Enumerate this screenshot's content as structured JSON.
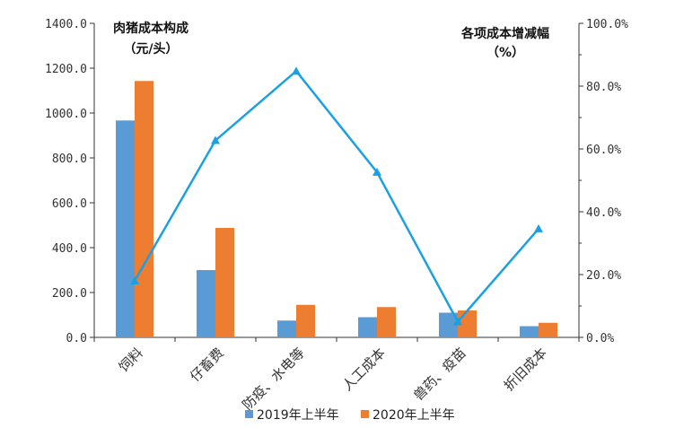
{
  "chart_data": {
    "type": "bar+line",
    "categories": [
      "饲料",
      "仔畜费",
      "防疫、水电等",
      "人工成本",
      "兽药、疫苗",
      "折旧成本"
    ],
    "series": [
      {
        "name": "2019年上半年",
        "type": "bar",
        "axis": "left",
        "color": "#5B9BD5",
        "values": [
          967,
          300,
          75,
          90,
          110,
          50
        ]
      },
      {
        "name": "2020年上半年",
        "type": "bar",
        "axis": "left",
        "color": "#ED7D31",
        "values": [
          1143,
          488,
          145,
          135,
          120,
          65
        ]
      },
      {
        "name": "各项成本增减幅",
        "type": "line",
        "axis": "right",
        "color": "#1BA1E2",
        "values": [
          18.0,
          62.7,
          84.8,
          52.6,
          5.0,
          34.6
        ]
      }
    ],
    "left_axis": {
      "title_line1": "肉猪成本构成",
      "title_line2": "（元/头）",
      "ylim": [
        0,
        1400
      ],
      "tick_labels": [
        "0.0",
        "200.0",
        "400.0",
        "600.0",
        "800.0",
        "1000.0",
        "1200.0",
        "1400.0"
      ]
    },
    "right_axis": {
      "title_line1": "各项成本增减幅",
      "title_line2": "（%）",
      "ylim": [
        0,
        100
      ],
      "tick_labels": [
        "0.0%",
        "20.0%",
        "40.0%",
        "60.0%",
        "80.0%",
        "100.0%"
      ]
    },
    "legend": {
      "position": "bottom",
      "items": [
        {
          "label": "2019年上半年",
          "color": "#5B9BD5"
        },
        {
          "label": "2020年上半年",
          "color": "#ED7D31"
        }
      ]
    }
  }
}
